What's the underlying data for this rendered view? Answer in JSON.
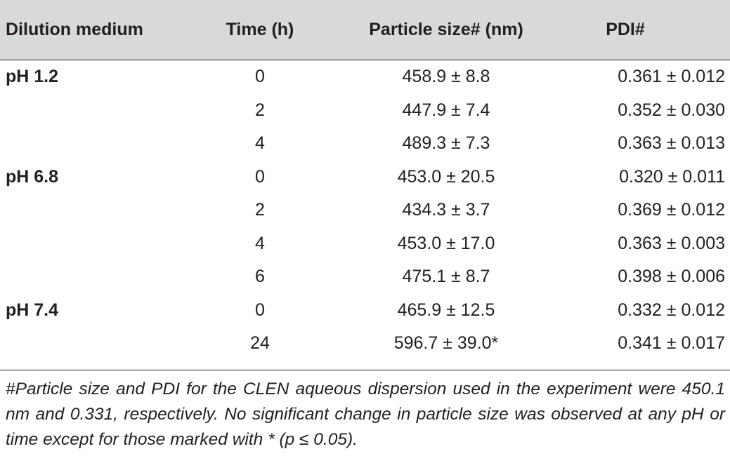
{
  "table": {
    "headers": {
      "medium": "Dilution medium",
      "time": "Time (h)",
      "size": "Particle size# (nm)",
      "pdi": "PDI#"
    },
    "rows": [
      {
        "medium": "pH 1.2",
        "time": "0",
        "size": "458.9 ± 8.8",
        "pdi": "0.361 ± 0.012"
      },
      {
        "medium": "",
        "time": "2",
        "size": "447.9 ± 7.4",
        "pdi": "0.352 ± 0.030"
      },
      {
        "medium": "",
        "time": "4",
        "size": "489.3 ± 7.3",
        "pdi": "0.363 ± 0.013"
      },
      {
        "medium": "pH 6.8",
        "time": "0",
        "size": "453.0 ± 20.5",
        "pdi": "0.320 ± 0.011"
      },
      {
        "medium": "",
        "time": "2",
        "size": "434.3 ± 3.7",
        "pdi": "0.369 ± 0.012"
      },
      {
        "medium": "",
        "time": "4",
        "size": "453.0 ± 17.0",
        "pdi": "0.363 ± 0.003"
      },
      {
        "medium": "",
        "time": "6",
        "size": "475.1 ± 8.7",
        "pdi": "0.398 ± 0.006"
      },
      {
        "medium": "pH 7.4",
        "time": "0",
        "size": "465.9 ± 12.5",
        "pdi": "0.332 ± 0.012"
      },
      {
        "medium": "",
        "time": "24",
        "size": "596.7 ± 39.0*",
        "pdi": "0.341 ± 0.017"
      }
    ]
  },
  "footnote": "#Particle size and PDI for the CLEN aqueous dispersion used in the experiment were 450.1 nm and 0.331, respectively. No significant change in particle size was observed at any pH or time except for those marked with * (p ≤ 0.05)."
}
